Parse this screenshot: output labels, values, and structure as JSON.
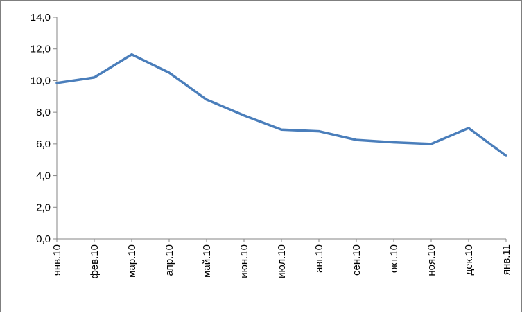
{
  "chart_data": {
    "type": "line",
    "categories": [
      "янв.10",
      "фев.10",
      "мар.10",
      "апр.10",
      "май.10",
      "июн.10",
      "июл.10",
      "авг.10",
      "сен.10",
      "окт.10",
      "ноя.10",
      "дек.10",
      "янв.11"
    ],
    "series": [
      {
        "values": [
          9.85,
          10.2,
          11.65,
          10.5,
          8.8,
          7.8,
          6.9,
          6.8,
          6.25,
          6.1,
          6.0,
          7.0,
          5.25
        ],
        "color": "#4a7ebb"
      }
    ],
    "y_ticks": [
      "0,0",
      "2,0",
      "4,0",
      "6,0",
      "8,0",
      "10,0",
      "12,0",
      "14,0"
    ],
    "ylim": [
      0,
      14
    ],
    "y_step": 2,
    "grid": false,
    "legend": "none",
    "axis_color": "#868686",
    "title": "",
    "xlabel": "",
    "ylabel": ""
  }
}
